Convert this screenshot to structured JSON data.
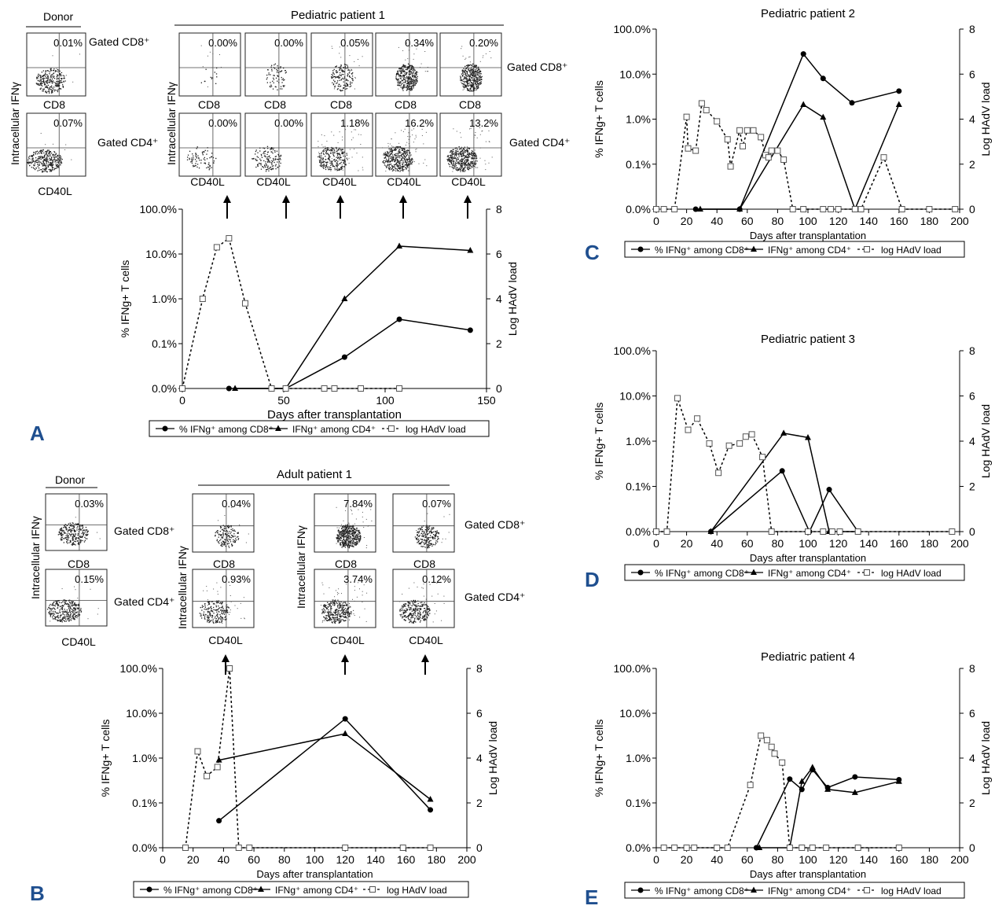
{
  "panel_letters": {
    "A": "A",
    "B": "B",
    "C": "C",
    "D": "D",
    "E": "E"
  },
  "flow_panels": {
    "A": {
      "donor_title": "Donor",
      "patient_title": "Pediatric patient 1",
      "ylabel": "Intracellular IFNγ",
      "gated_cd8": "Gated CD8⁺",
      "gated_cd4": "Gated CD4⁺",
      "xlabel_cd8": "CD8",
      "xlabel_cd40l": "CD40L",
      "donor_cd8_pct": "0.01%",
      "donor_cd4_pct": "0.07%",
      "patient_cd8_pcts": [
        "0.00%",
        "0.00%",
        "0.05%",
        "0.34%",
        "0.20%"
      ],
      "patient_cd4_pcts": [
        "0.00%",
        "0.00%",
        "1.18%",
        "16.2%",
        "13.2%"
      ]
    },
    "B": {
      "donor_title": "Donor",
      "patient_title": "Adult patient 1",
      "ylabel": "Intracellular IFNγ",
      "gated_cd8": "Gated CD8⁺",
      "gated_cd4": "Gated CD4⁺",
      "xlabel_cd8": "CD8",
      "xlabel_cd40l": "CD40L",
      "donor_cd8_pct": "0.03%",
      "donor_cd4_pct": "0.15%",
      "patient_cd8_pcts": [
        "0.04%",
        "7.84%",
        "0.07%"
      ],
      "patient_cd4_pcts": [
        "0.93%",
        "3.74%",
        "0.12%"
      ]
    }
  },
  "chart_data": [
    {
      "id": "A",
      "type": "line",
      "title": "",
      "xlabel": "Days after transplantation",
      "ylabel": "% IFNg+ T cells",
      "y2label": "Log HAdV load",
      "xlim": [
        0,
        150
      ],
      "xticks": [
        0,
        50,
        100,
        150
      ],
      "yticks": [
        "0.0%",
        "0.1%",
        "1.0%",
        "10.0%",
        "100.0%"
      ],
      "y2lim": [
        0,
        8
      ],
      "y2ticks": [
        0,
        2,
        4,
        6,
        8
      ],
      "series": [
        {
          "name": "% IFNg⁺ among CD8⁺",
          "marker": "circle",
          "style": "solid",
          "x": [
            23,
            51,
            80,
            107,
            142
          ],
          "y": [
            0.0,
            0.0,
            0.05,
            0.35,
            0.2
          ]
        },
        {
          "name": "IFNg⁺ among CD4⁺",
          "marker": "triangle",
          "style": "solid",
          "x": [
            26,
            51,
            80,
            107,
            142
          ],
          "y": [
            0.0,
            0.0,
            1.0,
            15.0,
            12.0
          ]
        },
        {
          "name": "log HAdV load",
          "marker": "square-open",
          "style": "dashed",
          "axis": "y2",
          "x": [
            0,
            10,
            17,
            23,
            31,
            44,
            51,
            70,
            75,
            88,
            107
          ],
          "y": [
            0,
            4,
            6.3,
            6.7,
            3.8,
            0,
            0,
            0,
            0,
            0,
            0
          ]
        }
      ],
      "legend": [
        "% IFNg⁺ among CD8⁺",
        "IFNg⁺ among CD4⁺",
        "log HAdV load"
      ]
    },
    {
      "id": "B",
      "type": "line",
      "title": "",
      "xlabel": "Days after transplantation",
      "ylabel": "% IFNg+ T cells",
      "y2label": "Log HAdV load",
      "xlim": [
        0,
        200
      ],
      "xticks": [
        0,
        20,
        40,
        60,
        80,
        100,
        120,
        140,
        160,
        180,
        200
      ],
      "yticks": [
        "0.0%",
        "0.1%",
        "1.0%",
        "10.0%",
        "100.0%"
      ],
      "y2lim": [
        0,
        8
      ],
      "y2ticks": [
        0,
        2,
        4,
        6,
        8
      ],
      "series": [
        {
          "name": "% IFNg⁺ among CD8⁺",
          "marker": "circle",
          "style": "solid",
          "x": [
            37,
            120,
            176
          ],
          "y": [
            0.04,
            7.5,
            0.07
          ]
        },
        {
          "name": "IFNg⁺ among CD4⁺",
          "marker": "triangle",
          "style": "solid",
          "x": [
            37,
            120,
            176
          ],
          "y": [
            0.9,
            3.5,
            0.12
          ]
        },
        {
          "name": "log HAdV load",
          "marker": "square-open",
          "style": "dashed",
          "axis": "y2",
          "x": [
            15,
            23,
            29,
            36,
            44,
            50,
            57,
            120,
            158,
            176
          ],
          "y": [
            0,
            4.3,
            3.2,
            3.6,
            8,
            0,
            0,
            0,
            0,
            0
          ]
        }
      ],
      "legend": [
        "% IFNg⁺ among CD8⁺",
        "IFNg⁺ among CD4⁺",
        "log HAdV load"
      ]
    },
    {
      "id": "C",
      "type": "line",
      "title": "Pediatric patient 2",
      "xlabel": "Days after transplantation",
      "ylabel": "% IFNg+ T cells",
      "y2label": "Log HAdV load",
      "xlim": [
        0,
        200
      ],
      "xticks": [
        0,
        20,
        40,
        60,
        80,
        100,
        120,
        140,
        160,
        180,
        200
      ],
      "yticks": [
        "0.0%",
        "0.1%",
        "1.0%",
        "10.0%",
        "100.0%"
      ],
      "y2lim": [
        0,
        8
      ],
      "y2ticks": [
        0,
        2,
        4,
        6,
        8
      ],
      "series": [
        {
          "name": "% IFNg⁺ among CD8⁺",
          "marker": "circle",
          "style": "solid",
          "x": [
            26,
            55,
            97,
            110,
            129,
            160
          ],
          "y": [
            0.0,
            0.0,
            28.0,
            8.0,
            2.3,
            4.2
          ]
        },
        {
          "name": "IFNg⁺ among CD4⁺",
          "marker": "triangle",
          "style": "solid",
          "x": [
            29,
            55,
            97,
            110,
            131,
            160
          ],
          "y": [
            0.0,
            0.0,
            2.1,
            1.1,
            0.0,
            2.1
          ]
        },
        {
          "name": "log HAdV load",
          "marker": "square-open",
          "style": "dashed",
          "axis": "y2",
          "x": [
            0,
            5,
            12,
            20,
            21,
            26,
            30,
            33,
            40,
            47,
            49,
            55,
            57,
            60,
            64,
            69,
            72,
            74,
            76,
            80,
            84,
            90,
            97,
            110,
            115,
            120,
            131,
            135,
            150,
            162,
            180,
            197
          ],
          "y": [
            0,
            0,
            0,
            4.1,
            2.7,
            2.6,
            4.7,
            4.4,
            3.9,
            3.1,
            1.9,
            3.5,
            2.8,
            3.5,
            3.5,
            3.2,
            2.4,
            2.3,
            2.6,
            2.6,
            2.2,
            0,
            0,
            0,
            0,
            0,
            0,
            0,
            2.3,
            0,
            0,
            0
          ]
        }
      ],
      "legend": [
        "% IFNg⁺ among CD8⁺",
        "IFNg⁺ among CD4⁺",
        "log HAdV load"
      ]
    },
    {
      "id": "D",
      "type": "line",
      "title": "Pediatric patient 3",
      "xlabel": "Days after transplantation",
      "ylabel": "% IFNg+ T cells",
      "y2label": "Log HAdV load",
      "xlim": [
        0,
        200
      ],
      "xticks": [
        0,
        20,
        40,
        60,
        80,
        100,
        120,
        140,
        160,
        180,
        200
      ],
      "yticks": [
        "0.0%",
        "0.1%",
        "1.0%",
        "10.0%",
        "100.0%"
      ],
      "y2lim": [
        0,
        8
      ],
      "y2ticks": [
        0,
        2,
        4,
        6,
        8
      ],
      "series": [
        {
          "name": "% IFNg⁺ among CD8⁺",
          "marker": "circle",
          "style": "solid",
          "x": [
            36,
            83,
            101,
            114,
            133
          ],
          "y": [
            0.0,
            0.22,
            0.0,
            0.085,
            0.0
          ]
        },
        {
          "name": "IFNg⁺ among CD4⁺",
          "marker": "triangle",
          "style": "solid",
          "x": [
            36,
            84,
            100,
            114,
            133
          ],
          "y": [
            0.0,
            1.5,
            1.2,
            0.0,
            0.0
          ]
        },
        {
          "name": "log HAdV load",
          "marker": "square-open",
          "style": "dashed",
          "axis": "y2",
          "x": [
            0,
            7,
            14,
            21,
            27,
            35,
            41,
            48,
            55,
            59,
            63,
            70,
            76,
            100,
            110,
            116,
            121,
            133,
            195
          ],
          "y": [
            0,
            0,
            5.9,
            4.5,
            5.0,
            3.9,
            2.6,
            3.8,
            3.9,
            4.2,
            4.3,
            3.3,
            0,
            0,
            0,
            0,
            0,
            0,
            0
          ]
        }
      ],
      "legend": [
        "% IFNg⁺ among CD8⁺",
        "IFNg⁺ among CD4⁺",
        "log HAdV load"
      ]
    },
    {
      "id": "E",
      "type": "line",
      "title": "Pediatric patient 4",
      "xlabel": "Days after transplantation",
      "ylabel": "% IFNg+ T cells",
      "y2label": "Log HAdV load",
      "xlim": [
        0,
        200
      ],
      "xticks": [
        0,
        20,
        40,
        60,
        80,
        100,
        120,
        140,
        160,
        180,
        200
      ],
      "yticks": [
        "0.0%",
        "0.1%",
        "1.0%",
        "10.0%",
        "100.0%"
      ],
      "y2lim": [
        0,
        8
      ],
      "y2ticks": [
        0,
        2,
        4,
        6,
        8
      ],
      "series": [
        {
          "name": "% IFNg⁺ among CD8⁺",
          "marker": "circle",
          "style": "solid",
          "x": [
            66,
            88,
            96,
            103,
            113,
            131,
            160
          ],
          "y": [
            0.0,
            0.34,
            0.2,
            0.55,
            0.22,
            0.38,
            0.33
          ]
        },
        {
          "name": "IFNg⁺ among CD4⁺",
          "marker": "triangle",
          "style": "solid",
          "x": [
            68,
            88,
            96,
            103,
            113,
            131,
            160
          ],
          "y": [
            0.0,
            0.0,
            0.3,
            0.62,
            0.2,
            0.17,
            0.3
          ]
        },
        {
          "name": "log HAdV load",
          "marker": "square-open",
          "style": "dashed",
          "axis": "y2",
          "x": [
            5,
            12,
            20,
            25,
            40,
            47,
            62,
            69,
            73,
            76,
            78,
            83,
            88,
            96,
            103,
            112,
            133,
            160
          ],
          "y": [
            0,
            0,
            0,
            0,
            0,
            0,
            2.8,
            5.0,
            4.8,
            4.5,
            4.2,
            3.8,
            0,
            0,
            0,
            0,
            0,
            0
          ]
        }
      ],
      "legend": [
        "% IFNg⁺ among CD8⁺",
        "IFNg⁺ among CD4⁺",
        "log HAdV load"
      ]
    }
  ]
}
